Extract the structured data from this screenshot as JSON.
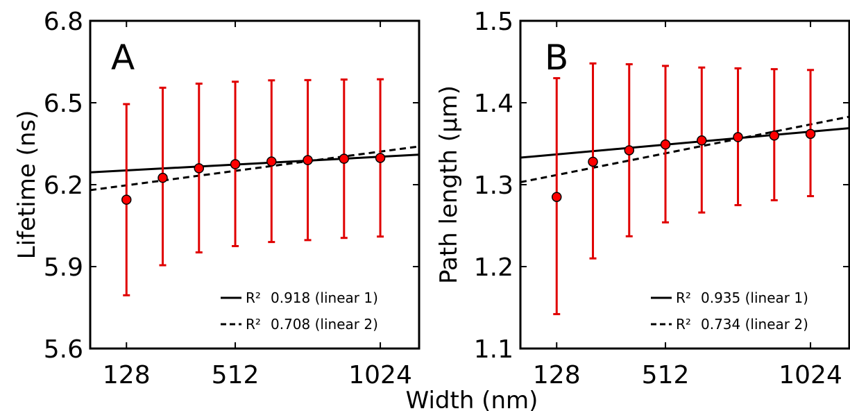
{
  "figure": {
    "shared_xlabel": "Width (nm)"
  },
  "chart_data": [
    {
      "type": "scatter",
      "panel_label": "A",
      "ylabel": "Lifetime (ns)",
      "xlim": [
        0,
        1161
      ],
      "ylim": [
        5.6,
        6.8
      ],
      "xticks": [
        128,
        512,
        1024
      ],
      "xtick_labels": [
        "128",
        "512",
        "1024"
      ],
      "yticks": [
        5.6,
        5.9,
        6.2,
        6.5,
        6.8
      ],
      "ytick_labels": [
        "5.6",
        "5.9",
        "6.2",
        "6.5",
        "6.8"
      ],
      "grid": false,
      "legend_position": "lower-right",
      "series": [
        {
          "kind": "points-with-error-bars",
          "color": "#e00000",
          "marker_color": "#ff0000",
          "x": [
            128,
            256,
            384,
            512,
            640,
            768,
            896,
            1024
          ],
          "y": [
            6.145,
            6.225,
            6.26,
            6.275,
            6.285,
            6.29,
            6.295,
            6.298
          ],
          "error_low": [
            5.795,
            5.905,
            5.952,
            5.975,
            5.99,
            5.997,
            6.005,
            6.01
          ],
          "error_high": [
            6.495,
            6.555,
            6.57,
            6.577,
            6.582,
            6.583,
            6.585,
            6.586
          ]
        },
        {
          "kind": "fit-line",
          "name": "0.918 (linear 1)",
          "line_style": "solid",
          "r2_label": "R²",
          "x": [
            0,
            1161
          ],
          "y": [
            6.245,
            6.31
          ]
        },
        {
          "kind": "fit-line",
          "name": "0.708 (linear 2)",
          "line_style": "dashed",
          "r2_label": "R²",
          "x": [
            0,
            1161
          ],
          "y": [
            6.18,
            6.34
          ]
        }
      ]
    },
    {
      "type": "scatter",
      "panel_label": "B",
      "ylabel": "Path length (μm)",
      "xlim": [
        0,
        1161
      ],
      "ylim": [
        1.1,
        1.5
      ],
      "xticks": [
        128,
        512,
        1024
      ],
      "xtick_labels": [
        "128",
        "512",
        "1024"
      ],
      "yticks": [
        1.1,
        1.2,
        1.3,
        1.4,
        1.5
      ],
      "ytick_labels": [
        "1.1",
        "1.2",
        "1.3",
        "1.4",
        "1.5"
      ],
      "grid": false,
      "legend_position": "lower-right",
      "series": [
        {
          "kind": "points-with-error-bars",
          "color": "#e00000",
          "marker_color": "#ff0000",
          "x": [
            128,
            256,
            384,
            512,
            640,
            768,
            896,
            1024
          ],
          "y": [
            1.285,
            1.328,
            1.342,
            1.349,
            1.354,
            1.358,
            1.36,
            1.362
          ],
          "error_low": [
            1.142,
            1.21,
            1.237,
            1.254,
            1.266,
            1.275,
            1.281,
            1.286
          ],
          "error_high": [
            1.43,
            1.448,
            1.447,
            1.445,
            1.443,
            1.442,
            1.441,
            1.44
          ]
        },
        {
          "kind": "fit-line",
          "name": "0.935 (linear 1)",
          "line_style": "solid",
          "r2_label": "R²",
          "x": [
            0,
            1161
          ],
          "y": [
            1.333,
            1.369
          ]
        },
        {
          "kind": "fit-line",
          "name": "0.734 (linear 2)",
          "line_style": "dashed",
          "r2_label": "R²",
          "x": [
            0,
            1161
          ],
          "y": [
            1.303,
            1.383
          ]
        }
      ]
    }
  ]
}
